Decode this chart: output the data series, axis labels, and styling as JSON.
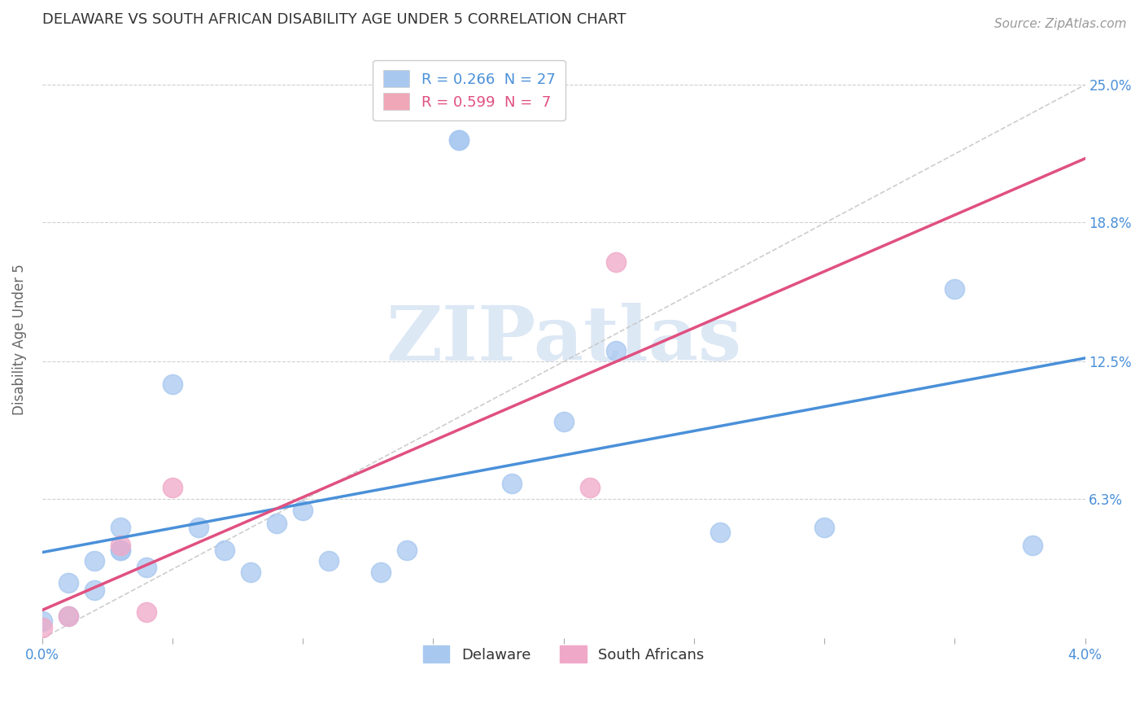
{
  "title": "DELAWARE VS SOUTH AFRICAN DISABILITY AGE UNDER 5 CORRELATION CHART",
  "source": "Source: ZipAtlas.com",
  "ylabel": "Disability Age Under 5",
  "y_tick_labels": [
    "6.3%",
    "12.5%",
    "18.8%",
    "25.0%"
  ],
  "y_tick_values": [
    0.063,
    0.125,
    0.188,
    0.25
  ],
  "xlim": [
    0.0,
    0.04
  ],
  "ylim": [
    0.0,
    0.27
  ],
  "legend_entries": [
    {
      "label": "R = 0.266  N = 27",
      "color": "#a8c8f0"
    },
    {
      "label": "R = 0.599  N =  7",
      "color": "#f0a8b8"
    }
  ],
  "delaware_points_x": [
    0.0,
    0.001,
    0.001,
    0.002,
    0.002,
    0.003,
    0.003,
    0.003,
    0.004,
    0.005,
    0.006,
    0.007,
    0.008,
    0.009,
    0.01,
    0.011,
    0.013,
    0.014,
    0.016,
    0.016,
    0.018,
    0.02,
    0.022,
    0.026,
    0.03,
    0.035,
    0.038
  ],
  "delaware_points_y": [
    0.008,
    0.01,
    0.025,
    0.022,
    0.035,
    0.04,
    0.04,
    0.05,
    0.032,
    0.115,
    0.05,
    0.04,
    0.03,
    0.052,
    0.058,
    0.035,
    0.03,
    0.04,
    0.225,
    0.225,
    0.07,
    0.098,
    0.13,
    0.048,
    0.05,
    0.158,
    0.042
  ],
  "sa_points_x": [
    0.0,
    0.001,
    0.003,
    0.004,
    0.005,
    0.021,
    0.022
  ],
  "sa_points_y": [
    0.005,
    0.01,
    0.042,
    0.012,
    0.068,
    0.068,
    0.17
  ],
  "delaware_color": "#a8c8f0",
  "sa_color": "#f0a8c8",
  "delaware_line_color": "#4a90d9",
  "sa_line_color": "#e05080",
  "ref_line_color": "#c8c8c8",
  "background_color": "#ffffff",
  "watermark_text": "ZIPatlas",
  "watermark_color": "#dde8f5",
  "title_fontsize": 13,
  "source_fontsize": 11,
  "tick_fontsize": 12,
  "ylabel_fontsize": 12,
  "legend_fontsize": 13
}
